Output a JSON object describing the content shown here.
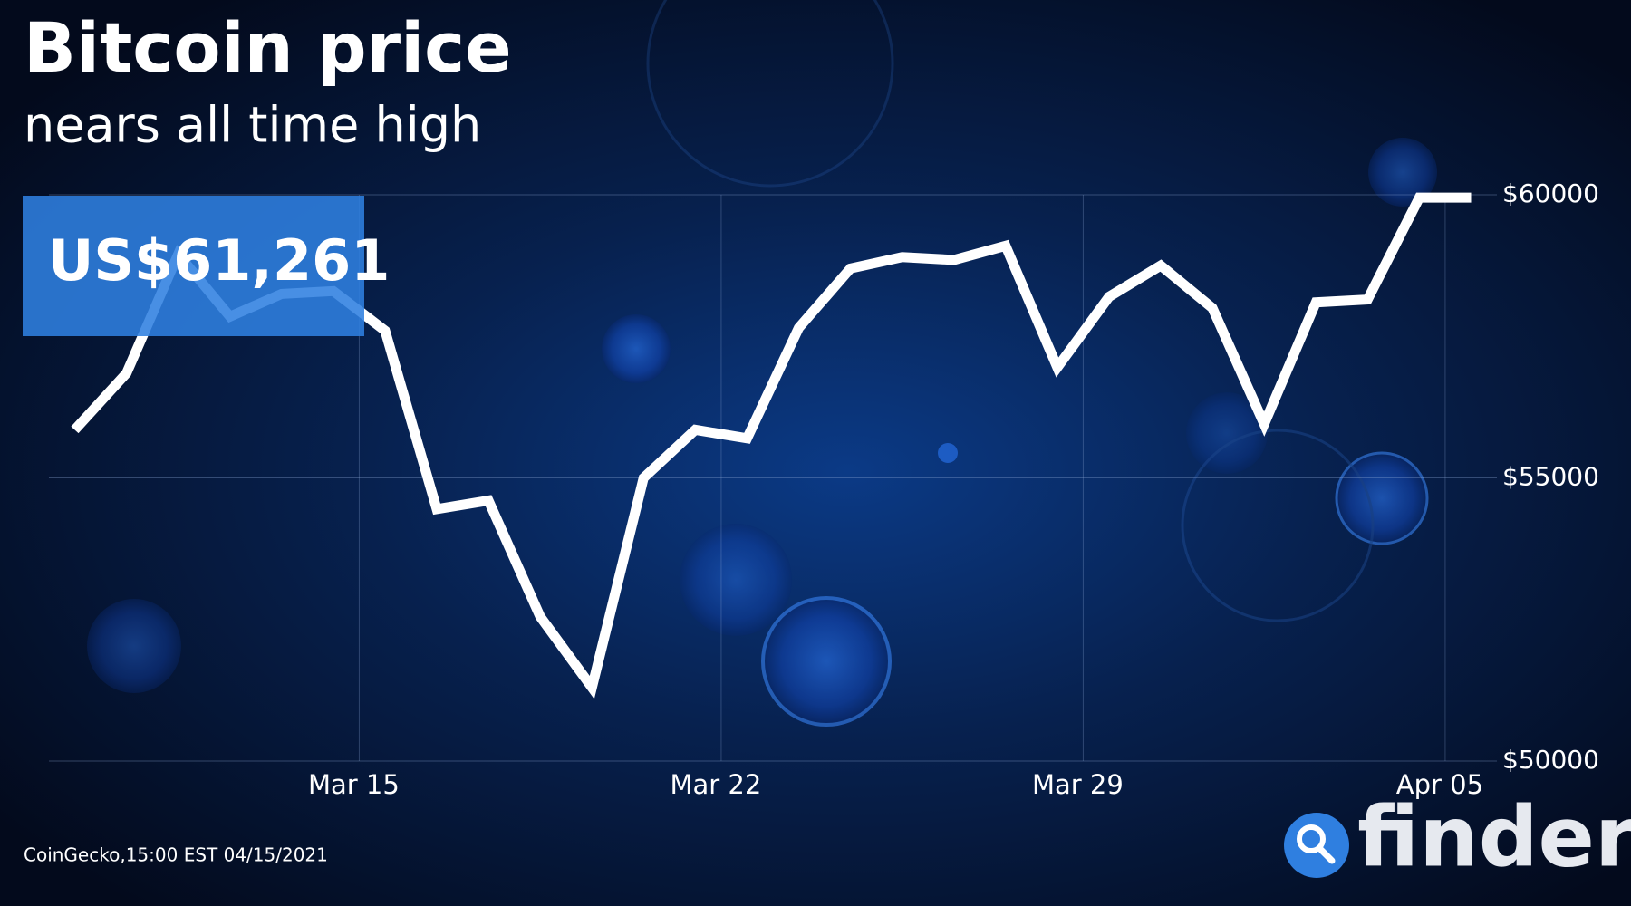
{
  "chart_data": {
    "type": "line",
    "title": "Bitcoin price",
    "subtitle": "nears all time high",
    "annotation": "US$61,261",
    "source": "CoinGecko,15:00 EST 04/15/2021",
    "brand": "finder",
    "x": [
      0,
      1,
      2,
      3,
      4,
      5,
      6,
      7,
      8,
      9,
      10,
      11,
      12,
      13,
      14,
      15,
      16,
      17,
      18,
      19,
      20,
      21,
      22,
      23,
      24,
      25,
      26,
      27
    ],
    "values": [
      55850,
      56850,
      58950,
      57850,
      58250,
      58300,
      57600,
      54450,
      54600,
      52550,
      51300,
      55000,
      55850,
      55700,
      57650,
      58700,
      58900,
      58850,
      59100,
      56950,
      58200,
      58750,
      58000,
      55950,
      58100,
      58150,
      59950,
      59950
    ],
    "color": "#ffffff",
    "xlim": [
      -0.5,
      27.5
    ],
    "xticks": [
      {
        "value": 5.5,
        "label": "Mar 15"
      },
      {
        "value": 12.5,
        "label": "Mar 22"
      },
      {
        "value": 19.5,
        "label": "Mar 29"
      },
      {
        "value": 26.5,
        "label": "Apr 05"
      }
    ],
    "ylim": [
      50000,
      60000
    ],
    "yticks": [
      {
        "value": 50000,
        "label": "$50000"
      },
      {
        "value": 55000,
        "label": "$55000"
      },
      {
        "value": 60000,
        "label": "$60000"
      }
    ],
    "grid": true
  }
}
